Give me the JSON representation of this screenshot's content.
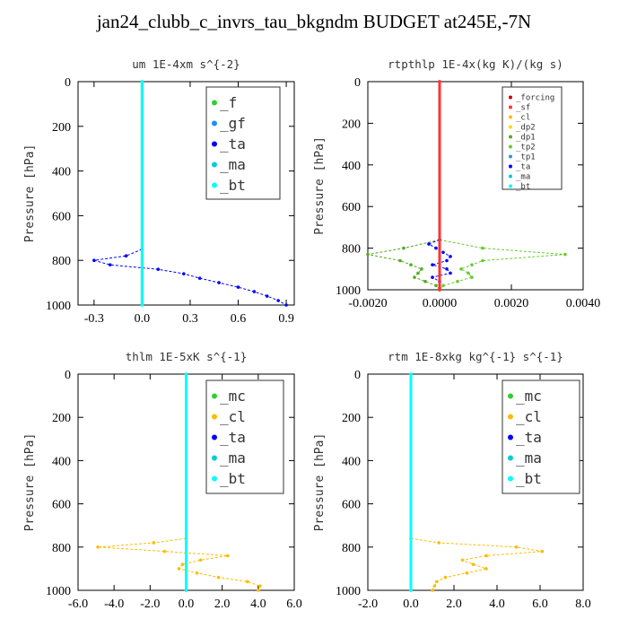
{
  "title": "jan24_clubb_c_invrs_tau_bkgndm  BUDGET at245E,-7N",
  "colors": {
    "_f": "#32cd32",
    "_gf": "#1e90ff",
    "_ta": "#0000ff",
    "_ma": "#00ced1",
    "_bt": "#00ffff",
    "_forcing": "#cc0000",
    "_sf": "#ff3333",
    "_cl": "#ffbb00",
    "_dp2": "#ffd700",
    "_dp1": "#55aa22",
    "_tp2": "#66cc33",
    "_tp1": "#3399cc",
    "_mc": "#32cd32"
  },
  "chart_data": [
    {
      "type": "line",
      "title": "um  1E-4xm s^{-2}",
      "ylabel": "Pressure [hPa]",
      "xlim": [
        -0.4,
        0.95
      ],
      "ylim": [
        1000,
        0
      ],
      "xticks": [
        "-0.3",
        "0.0",
        "0.3",
        "0.6",
        "0.9"
      ],
      "xtick_values": [
        -0.3,
        0,
        0.3,
        0.6,
        0.9
      ],
      "yticks": [
        "0",
        "200",
        "400",
        "600",
        "800",
        "1000"
      ],
      "ytick_values": [
        0,
        200,
        400,
        600,
        800,
        1000
      ],
      "legend": [
        "_f",
        "_gf",
        "_ta",
        "_ma",
        "_bt"
      ],
      "series": [
        {
          "name": "_ta",
          "y": [
            750,
            780,
            800,
            820,
            840,
            860,
            880,
            900,
            920,
            940,
            960,
            980,
            1000
          ],
          "x": [
            0,
            -0.1,
            -0.3,
            -0.2,
            0.1,
            0.26,
            0.36,
            0.48,
            0.6,
            0.7,
            0.78,
            0.85,
            0.9
          ]
        },
        {
          "name": "_f",
          "y": [
            0,
            1000
          ],
          "x": [
            0,
            0
          ]
        },
        {
          "name": "_bt",
          "y": [
            0,
            1000
          ],
          "x": [
            0,
            0
          ]
        }
      ]
    },
    {
      "type": "line",
      "title": "rtpthlp  1E-4x(kg K)/(kg s)",
      "ylabel": "Pressure [hPa]",
      "xlim": [
        -0.002,
        0.004
      ],
      "ylim": [
        1000,
        0
      ],
      "xticks": [
        "-0.0020",
        "0.0000",
        "0.0020",
        "0.0040"
      ],
      "xtick_values": [
        -0.002,
        0,
        0.002,
        0.004
      ],
      "yticks": [
        "0",
        "200",
        "400",
        "600",
        "800",
        "1000"
      ],
      "ytick_values": [
        0,
        200,
        400,
        600,
        800,
        1000
      ],
      "legend": [
        "_forcing",
        "_sf",
        "_cl",
        "_dp2",
        "_dp1",
        "_tp2",
        "_tp1",
        "_ta",
        "_ma",
        "_bt"
      ],
      "series": [
        {
          "name": "_tp2",
          "y": [
            760,
            800,
            830,
            860,
            880,
            900,
            920,
            940,
            960,
            980,
            1000
          ],
          "x": [
            0,
            0.0012,
            0.0035,
            0.0012,
            0.0009,
            0.0006,
            0.0008,
            0.0009,
            0.0005,
            0.0001,
            0
          ]
        },
        {
          "name": "_dp1",
          "y": [
            760,
            800,
            830,
            860,
            880,
            900,
            920,
            940,
            960,
            980,
            1000
          ],
          "x": [
            0,
            -0.001,
            -0.002,
            -0.0011,
            -0.0008,
            -0.0005,
            -0.0006,
            -0.0007,
            -0.0004,
            -0.0001,
            0
          ]
        },
        {
          "name": "_ta",
          "y": [
            760,
            780,
            800,
            820,
            840,
            860,
            880,
            900,
            920,
            940,
            960
          ],
          "x": [
            0,
            -0.0003,
            -0.0001,
            0.0001,
            0.0003,
            0.0002,
            -0.0002,
            0.0002,
            0.0003,
            -0.0002,
            0
          ]
        },
        {
          "name": "_forcing",
          "y": [
            0,
            1000
          ],
          "x": [
            0,
            0
          ]
        },
        {
          "name": "_sf",
          "y": [
            0,
            1000
          ],
          "x": [
            0,
            0
          ]
        }
      ]
    },
    {
      "type": "line",
      "title": "thlm  1E-5xK s^{-1}",
      "ylabel": "Pressure [hPa]",
      "xlim": [
        -6,
        6
      ],
      "ylim": [
        1000,
        0
      ],
      "xticks": [
        "-6.0",
        "-4.0",
        "-2.0",
        "0.0",
        "2.0",
        "4.0",
        "6.0"
      ],
      "xtick_values": [
        -6,
        -4,
        -2,
        0,
        2,
        4,
        6
      ],
      "yticks": [
        "0",
        "200",
        "400",
        "600",
        "800",
        "1000"
      ],
      "ytick_values": [
        0,
        200,
        400,
        600,
        800,
        1000
      ],
      "legend": [
        "_mc",
        "_cl",
        "_ta",
        "_ma",
        "_bt"
      ],
      "series": [
        {
          "name": "_cl",
          "y": [
            760,
            780,
            800,
            820,
            840,
            860,
            880,
            900,
            920,
            940,
            960,
            980,
            1000
          ],
          "x": [
            0,
            -1.8,
            -4.9,
            -1.2,
            2.3,
            0.8,
            -0.2,
            -0.4,
            0.6,
            1.8,
            3.4,
            4.1,
            4.0
          ]
        },
        {
          "name": "_mc",
          "y": [
            0,
            1000
          ],
          "x": [
            0,
            0
          ]
        },
        {
          "name": "_bt",
          "y": [
            0,
            1000
          ],
          "x": [
            0,
            0
          ]
        }
      ]
    },
    {
      "type": "line",
      "title": "rtm  1E-8xkg kg^{-1} s^{-1}",
      "ylabel": "Pressure [hPa]",
      "xlim": [
        -2,
        8
      ],
      "ylim": [
        1000,
        0
      ],
      "xticks": [
        "-2.0",
        "0.0",
        "2.0",
        "4.0",
        "6.0",
        "8.0"
      ],
      "xtick_values": [
        -2,
        0,
        2,
        4,
        6,
        8
      ],
      "yticks": [
        "0",
        "200",
        "400",
        "600",
        "800",
        "1000"
      ],
      "ytick_values": [
        0,
        200,
        400,
        600,
        800,
        1000
      ],
      "legend": [
        "_mc",
        "_cl",
        "_ta",
        "_ma",
        "_bt"
      ],
      "series": [
        {
          "name": "_cl",
          "y": [
            760,
            780,
            800,
            820,
            840,
            860,
            880,
            900,
            920,
            940,
            960,
            980,
            1000
          ],
          "x": [
            0,
            1.3,
            4.9,
            6.1,
            3.5,
            2.4,
            2.9,
            3.5,
            2.6,
            1.6,
            1.2,
            1.1,
            1.0
          ]
        },
        {
          "name": "_mc",
          "y": [
            0,
            1000
          ],
          "x": [
            0,
            0
          ]
        },
        {
          "name": "_bt",
          "y": [
            0,
            1000
          ],
          "x": [
            0,
            0
          ]
        }
      ]
    }
  ]
}
